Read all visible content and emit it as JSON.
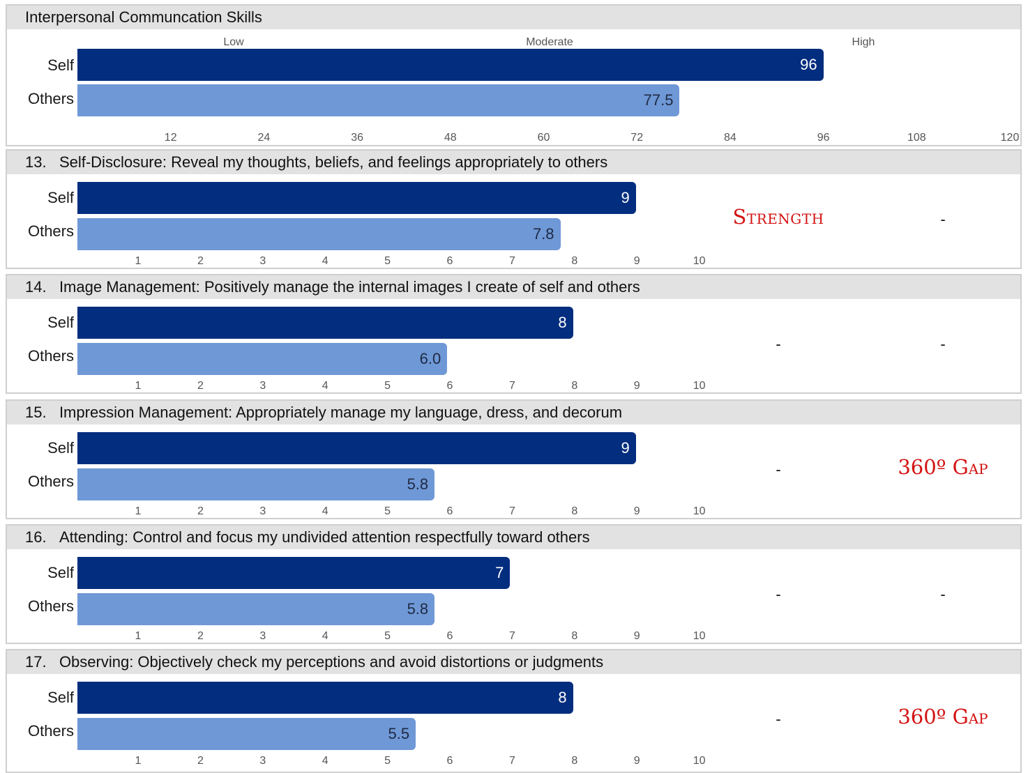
{
  "summary": {
    "title": "Interpersonal Communcation Skills",
    "bands": [
      "Low",
      "Moderate",
      "High"
    ],
    "ticks": [
      "12",
      "24",
      "36",
      "48",
      "60",
      "72",
      "84",
      "96",
      "108",
      "120"
    ],
    "axis_max": 120,
    "self_value": 96,
    "self_label": "96",
    "others_value": 77.5,
    "others_label": "77.5"
  },
  "labels": {
    "self": "Self",
    "others": "Others"
  },
  "item_ticks": [
    "1",
    "2",
    "3",
    "4",
    "5",
    "6",
    "7",
    "8",
    "9",
    "10"
  ],
  "items": [
    {
      "number": "13.",
      "text": "Self-Disclosure: Reveal my thoughts, beliefs, and feelings appropriately to others",
      "self_value": 9,
      "self_label": "9",
      "others_value": 7.8,
      "others_label": "7.8",
      "flag1": "Strength",
      "flag2": "-"
    },
    {
      "number": "14.",
      "text": "Image Management: Positively manage the internal images I create of self and others",
      "self_value": 8,
      "self_label": "8",
      "others_value": 6.0,
      "others_label": "6.0",
      "flag1": "-",
      "flag2": "-"
    },
    {
      "number": "15.",
      "text": "Impression Management: Appropriately manage my language, dress, and decorum",
      "self_value": 9,
      "self_label": "9",
      "others_value": 5.8,
      "others_label": "5.8",
      "flag1": "-",
      "flag2": "360º Gap"
    },
    {
      "number": "16.",
      "text": "Attending: Control and focus my undivided attention respectfully toward others",
      "self_value": 7,
      "self_label": "7",
      "others_value": 5.8,
      "others_label": "5.8",
      "flag1": "-",
      "flag2": "-"
    },
    {
      "number": "17.",
      "text": "Observing: Objectively check my perceptions and avoid distortions or judgments",
      "self_value": 8,
      "self_label": "8",
      "others_value": 5.5,
      "others_label": "5.5",
      "flag1": "-",
      "flag2": "360º Gap"
    }
  ],
  "colors": {
    "self": "#032d7e",
    "others": "#6f98d6",
    "flag": "#d31212",
    "header": "#e2e2e2"
  },
  "chart_data": [
    {
      "type": "bar",
      "title": "Interpersonal Communcation Skills",
      "categories": [
        "Self",
        "Others"
      ],
      "values": [
        96,
        77.5
      ],
      "xlim": [
        0,
        120
      ],
      "xticks": [
        12,
        24,
        36,
        48,
        60,
        72,
        84,
        96,
        108,
        120
      ]
    },
    {
      "type": "bar",
      "title": "13. Self-Disclosure: Reveal my thoughts, beliefs, and feelings appropriately to others",
      "categories": [
        "Self",
        "Others"
      ],
      "values": [
        9,
        7.8
      ],
      "xticks": [
        1,
        2,
        3,
        4,
        5,
        6,
        7,
        8,
        9,
        10
      ]
    },
    {
      "type": "bar",
      "title": "14. Image Management: Positively manage the internal images I create of self and others",
      "categories": [
        "Self",
        "Others"
      ],
      "values": [
        8,
        6.0
      ],
      "xticks": [
        1,
        2,
        3,
        4,
        5,
        6,
        7,
        8,
        9,
        10
      ]
    },
    {
      "type": "bar",
      "title": "15. Impression Management: Appropriately manage my language, dress, and decorum",
      "categories": [
        "Self",
        "Others"
      ],
      "values": [
        9,
        5.8
      ],
      "xticks": [
        1,
        2,
        3,
        4,
        5,
        6,
        7,
        8,
        9,
        10
      ]
    },
    {
      "type": "bar",
      "title": "16. Attending: Control and focus my undivided attention respectfully toward others",
      "categories": [
        "Self",
        "Others"
      ],
      "values": [
        7,
        5.8
      ],
      "xticks": [
        1,
        2,
        3,
        4,
        5,
        6,
        7,
        8,
        9,
        10
      ]
    },
    {
      "type": "bar",
      "title": "17. Observing: Objectively check my perceptions and avoid distortions or judgments",
      "categories": [
        "Self",
        "Others"
      ],
      "values": [
        8,
        5.5
      ],
      "xticks": [
        1,
        2,
        3,
        4,
        5,
        6,
        7,
        8,
        9,
        10
      ]
    }
  ]
}
